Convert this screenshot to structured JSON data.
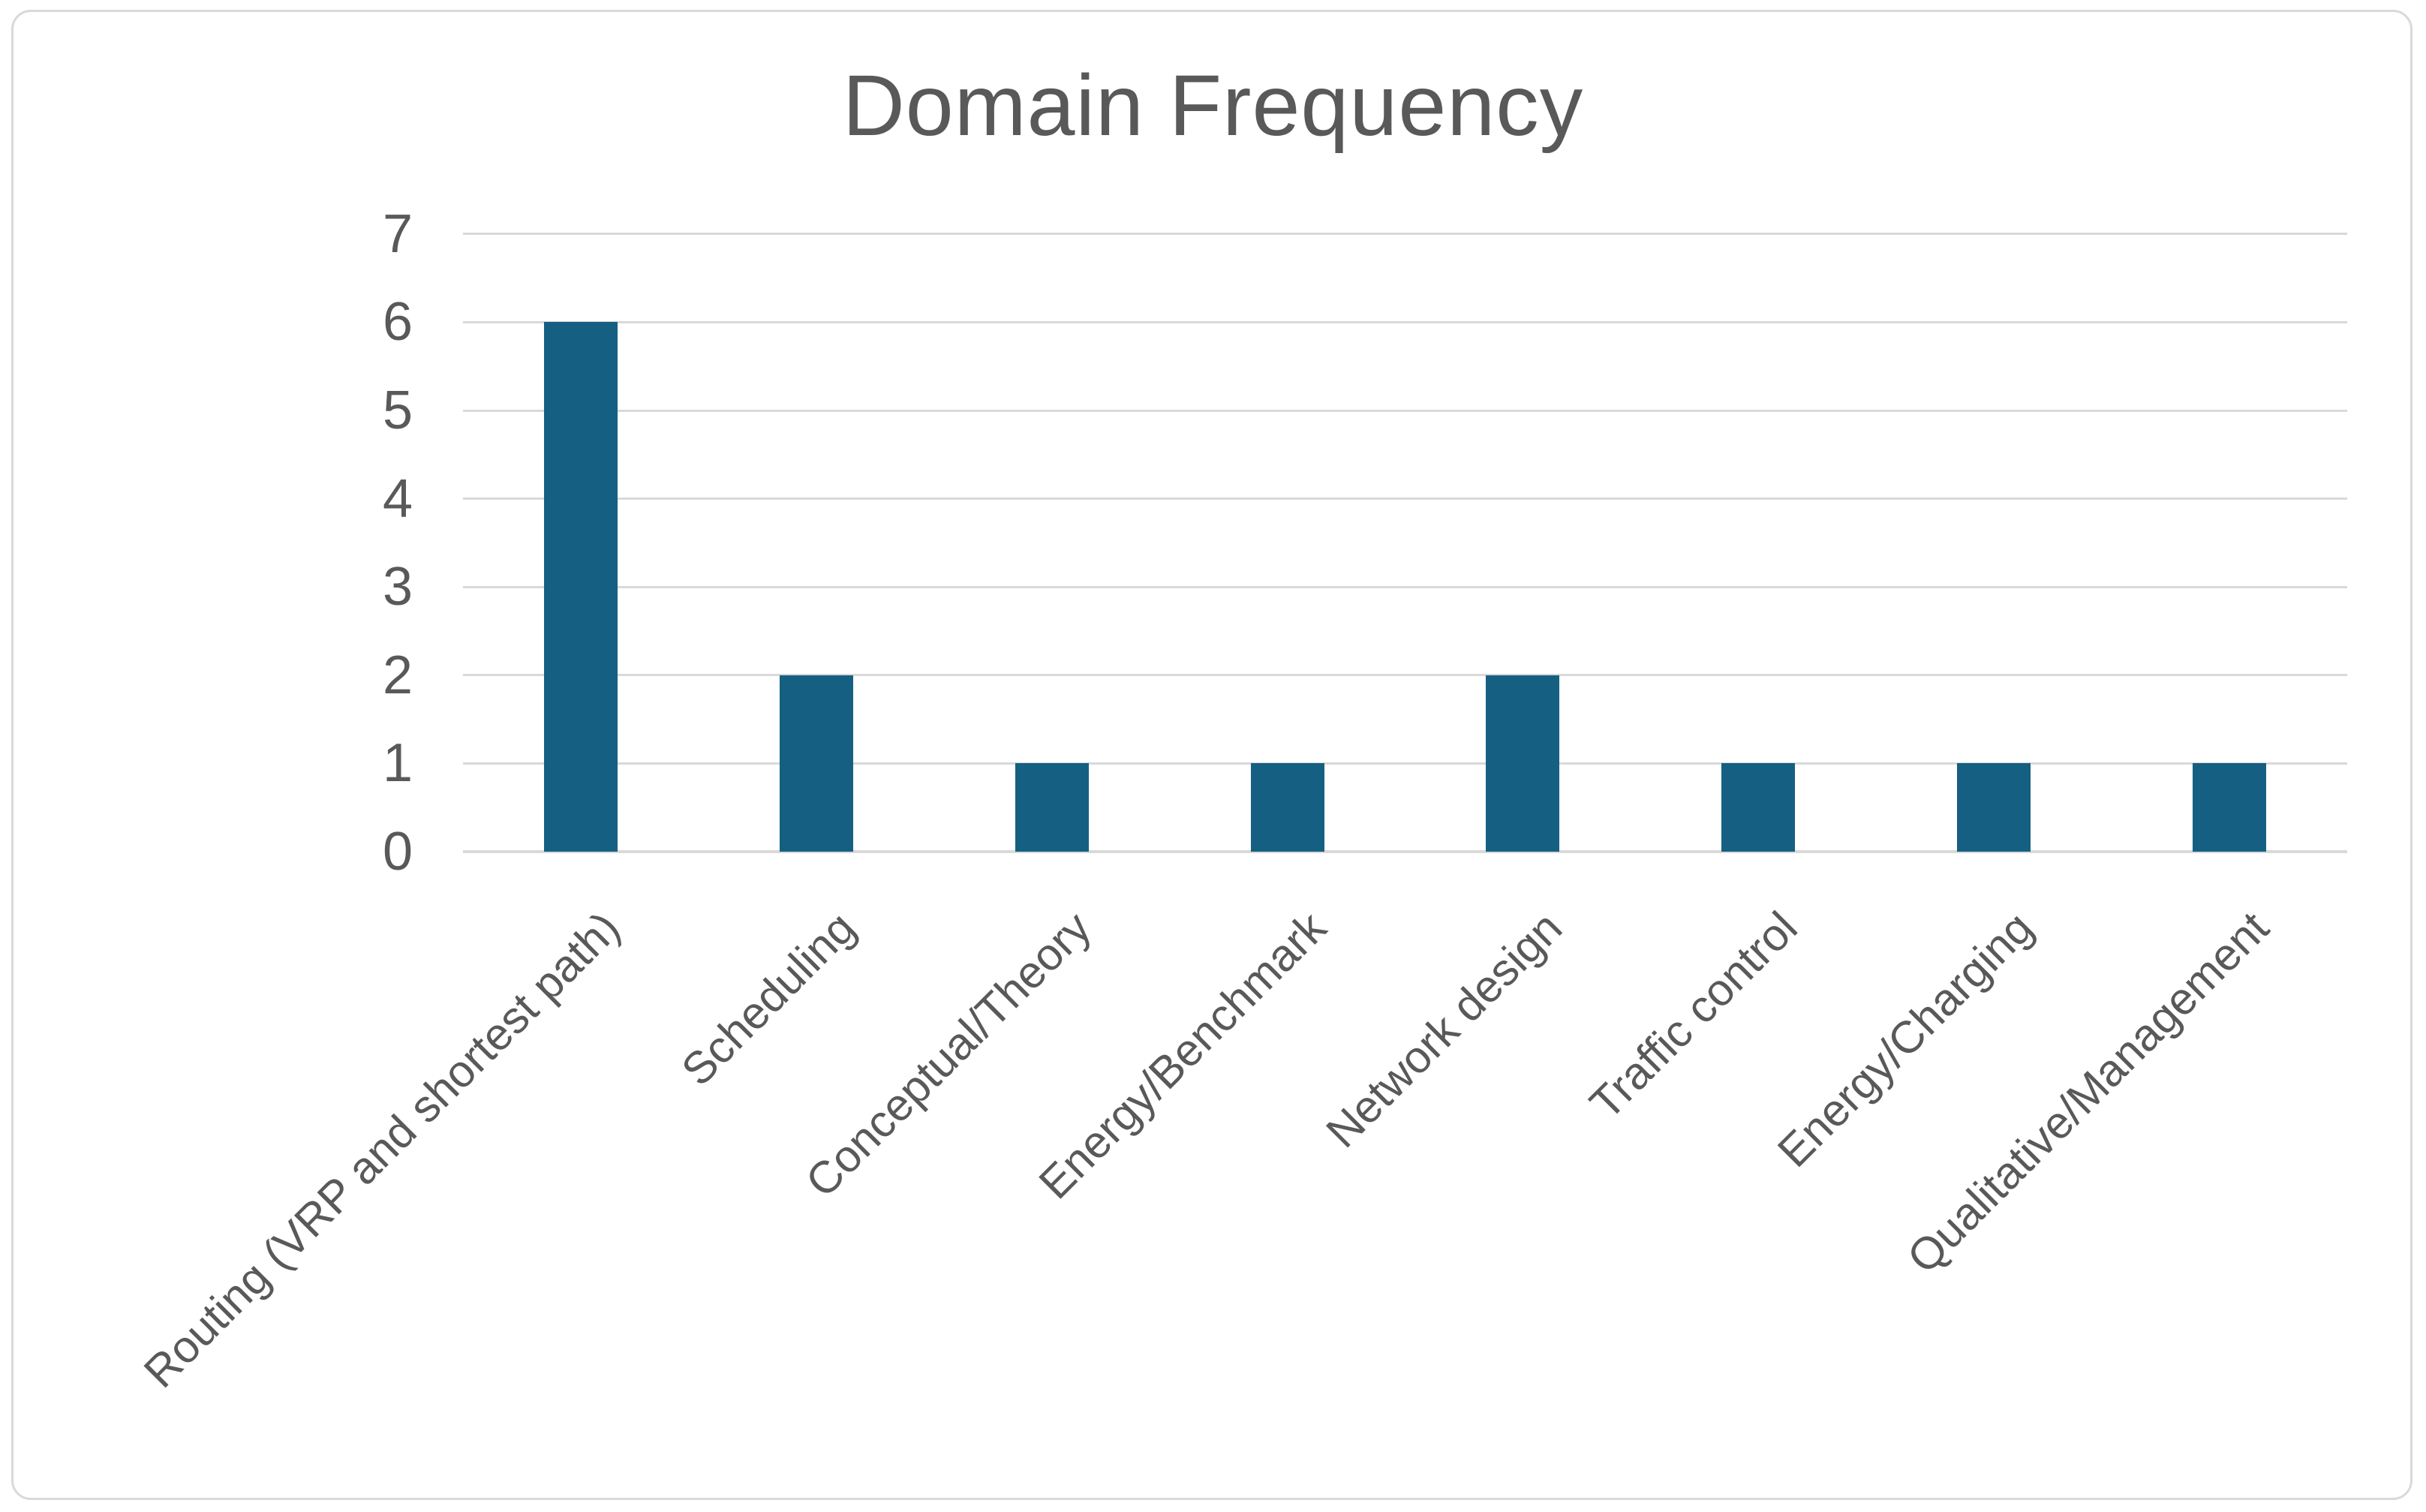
{
  "chart_data": {
    "type": "bar",
    "title": "Domain Frequency",
    "categories": [
      "Routing (VRP and shortest path)",
      "Scheduling",
      "Conceptual/Theory",
      "Energy/Benchmark",
      "Network design",
      "Traffic control",
      "Energy/Charging",
      "Qualitative/Management"
    ],
    "values": [
      6,
      2,
      1,
      1,
      2,
      1,
      1,
      1
    ],
    "xlabel": "",
    "ylabel": "",
    "ylim": [
      0,
      7
    ],
    "ytick_step": 1,
    "yticks": [
      0,
      1,
      2,
      3,
      4,
      5,
      6,
      7
    ],
    "grid": true,
    "legend": false,
    "x_label_rotation_degrees": 45,
    "colors": {
      "bar": "#156082",
      "gridline": "#D9D9D9",
      "axis_line": "#D9D9D9",
      "text": "#595959",
      "frame_border": "#D9D9D9",
      "background": "#FFFFFF"
    }
  }
}
